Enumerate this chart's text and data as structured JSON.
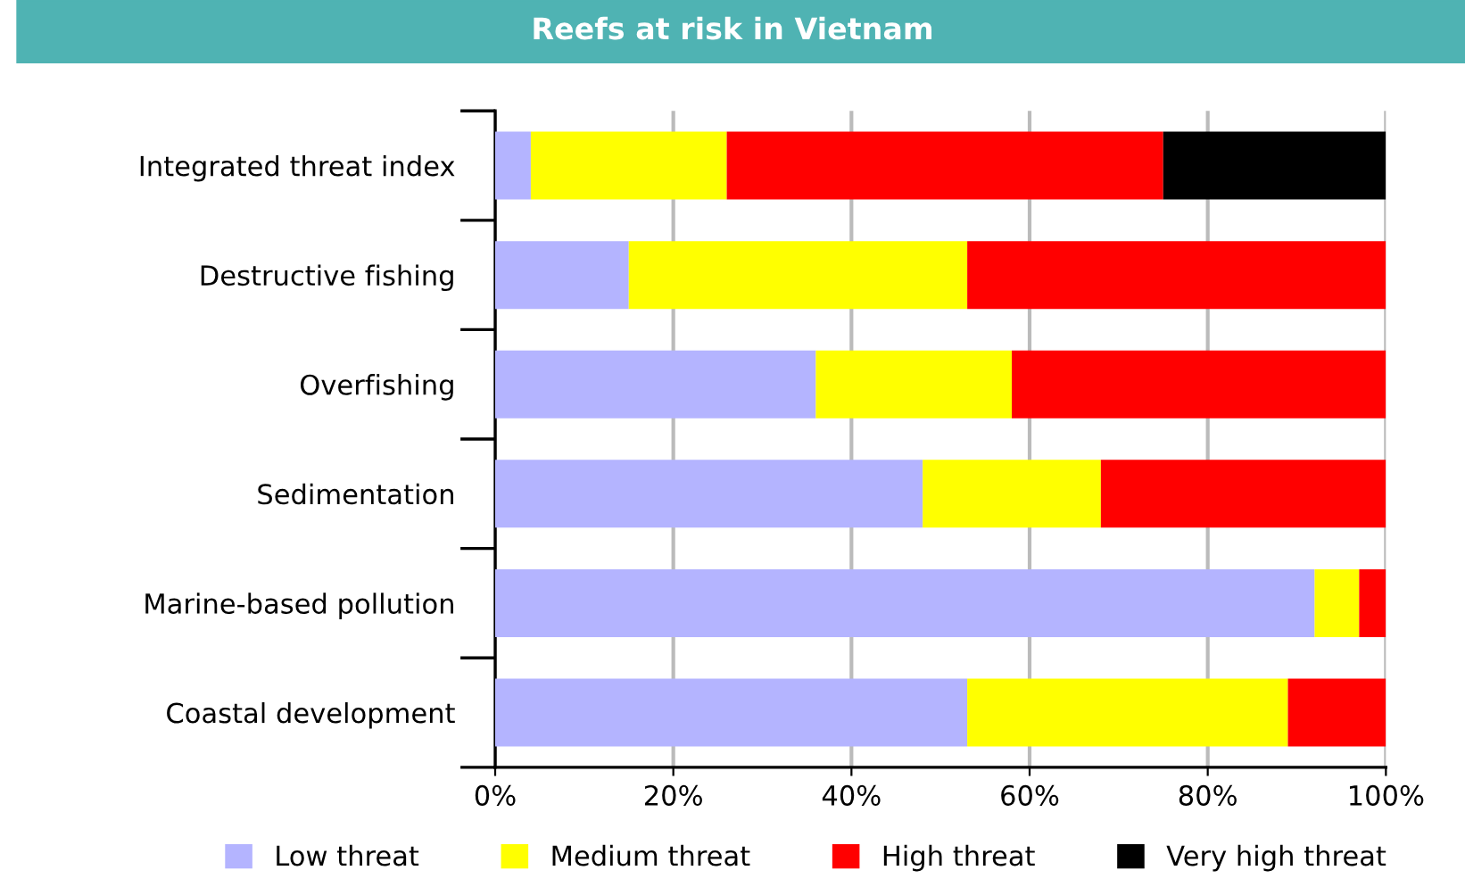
{
  "chart_data": {
    "type": "bar",
    "orientation": "horizontal",
    "stacked": true,
    "title": "Reefs at risk in Vietnam",
    "categories": [
      "Integrated threat index",
      "Destructive fishing",
      "Overfishing",
      "Sedimentation",
      "Marine-based pollution",
      "Coastal development"
    ],
    "series": [
      {
        "name": "Low threat",
        "color": "#b4b4ff",
        "values": [
          4,
          15,
          36,
          48,
          92,
          53
        ]
      },
      {
        "name": "Medium threat",
        "color": "#ffff00",
        "values": [
          22,
          38,
          22,
          20,
          5,
          36
        ]
      },
      {
        "name": "High threat",
        "color": "#ff0000",
        "values": [
          49,
          47,
          42,
          32,
          3,
          11
        ]
      },
      {
        "name": "Very high threat",
        "color": "#000000",
        "values": [
          25,
          0,
          0,
          0,
          0,
          0
        ]
      }
    ],
    "xlim": [
      0,
      100
    ],
    "xticks": [
      {
        "value": 0,
        "label": "0%"
      },
      {
        "value": 20,
        "label": "20%"
      },
      {
        "value": 40,
        "label": "40%"
      },
      {
        "value": 60,
        "label": "60%"
      },
      {
        "value": 80,
        "label": "80%"
      },
      {
        "value": 100,
        "label": "100%"
      }
    ],
    "grid": "x",
    "legend": "bottom"
  }
}
